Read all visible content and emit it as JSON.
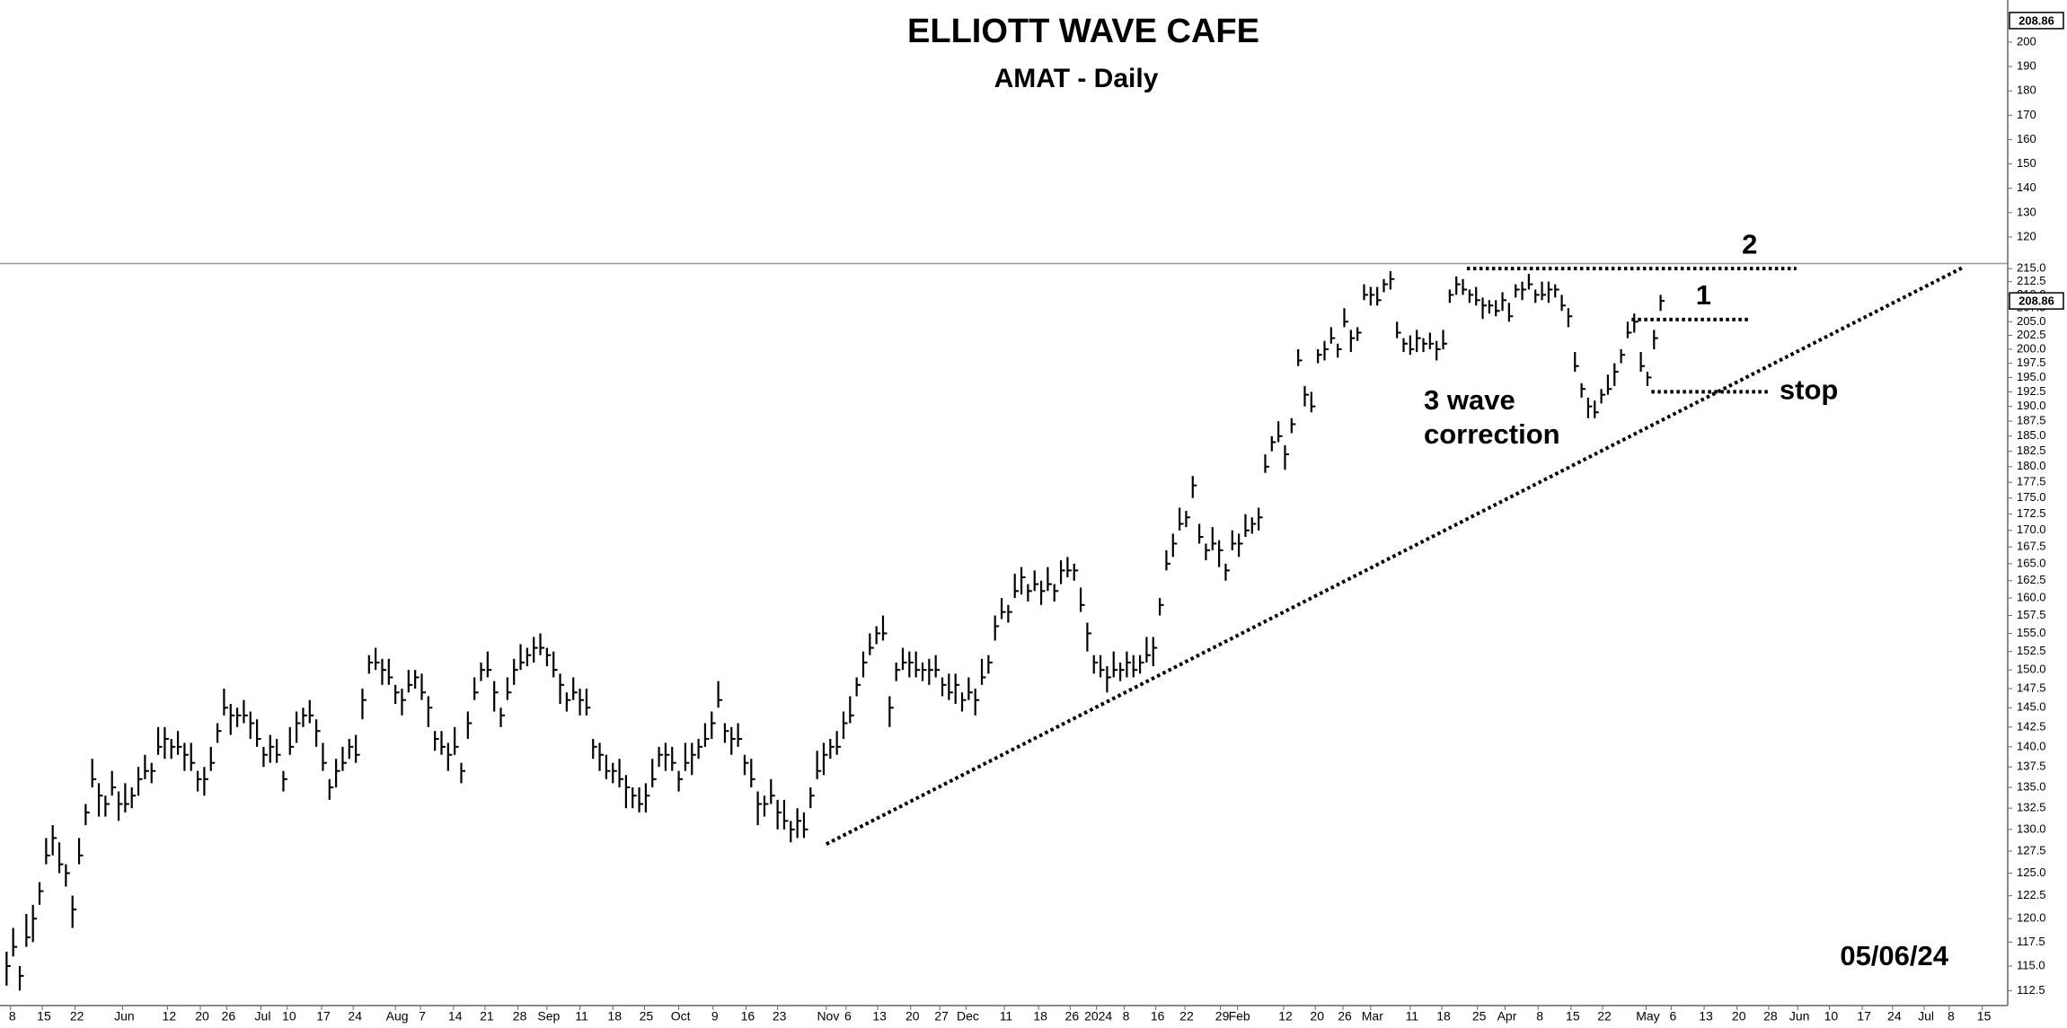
{
  "chart_data": [
    {
      "type": "pane",
      "title": "ELLIOTT WAVE CAFE",
      "subtitle": "AMAT - Daily",
      "ylim": [
        109.3,
        217.3
      ],
      "yticks": [
        120,
        130,
        140,
        150,
        160,
        170,
        180,
        190,
        200
      ],
      "last_price": 208.86
    },
    {
      "type": "ohlc",
      "log_scale": true,
      "color": "#000000",
      "line_color": "#000000",
      "xlim": [
        -1,
        303.4
      ],
      "ylim": [
        111,
        215.9
      ],
      "last_price": 208.86,
      "close": [
        115,
        117,
        114,
        118,
        120,
        123,
        127,
        129,
        126,
        125,
        121,
        127,
        132,
        136,
        134,
        133,
        135,
        133,
        133,
        134,
        136,
        137,
        137,
        140,
        141,
        140,
        140,
        139,
        138,
        136,
        136,
        138,
        142,
        145,
        144,
        144,
        144,
        143,
        141,
        139,
        140,
        139,
        136,
        140,
        143,
        144,
        144,
        142,
        138,
        135,
        137,
        138,
        140,
        139,
        146,
        151,
        151,
        150,
        149,
        147,
        146,
        148,
        149,
        147,
        145,
        141,
        140,
        139,
        140,
        137,
        143,
        147,
        150,
        150,
        147,
        144,
        147,
        150,
        151,
        152,
        153,
        153,
        152,
        150,
        148,
        146,
        147,
        146,
        145,
        140,
        139,
        137,
        137,
        136,
        135,
        134,
        133,
        134,
        136,
        139,
        139,
        138,
        136,
        138,
        139,
        140,
        141,
        143,
        146,
        142,
        141,
        141,
        138,
        136,
        133,
        133,
        134,
        132,
        131,
        130,
        131,
        130,
        134,
        137,
        139,
        140,
        140,
        143,
        144,
        148,
        151,
        153,
        155,
        155,
        145,
        150,
        151,
        151,
        150,
        150,
        150,
        150,
        148,
        147,
        148,
        146,
        147,
        146,
        149,
        151,
        156,
        158,
        158,
        161,
        163,
        161,
        162,
        161,
        162,
        161,
        164,
        164,
        164,
        159,
        155,
        151,
        150,
        149,
        150,
        150,
        151,
        150,
        151,
        152,
        153,
        159,
        165,
        168,
        171,
        172,
        177,
        169,
        167,
        168,
        167,
        164,
        168,
        168,
        170,
        171,
        172,
        180,
        184,
        185,
        182,
        187,
        198,
        192,
        190,
        199,
        200,
        202,
        200,
        205,
        202,
        203,
        210,
        210,
        209,
        212,
        213,
        203,
        201,
        200,
        202,
        201,
        201,
        200,
        201,
        210,
        212,
        211,
        210,
        209,
        208,
        208,
        207,
        209,
        206,
        211,
        211,
        212,
        210,
        210,
        211,
        211,
        208,
        206,
        197,
        193,
        190,
        189,
        192,
        193,
        196,
        199,
        203,
        205,
        197,
        195,
        202,
        208.86
      ],
      "high": [
        116.5,
        119,
        115,
        120.5,
        121.5,
        124,
        129,
        130.5,
        128.5,
        126,
        122.5,
        129,
        133,
        138.5,
        135.5,
        134,
        137,
        134.5,
        135.5,
        135,
        137.5,
        139,
        138,
        142.5,
        142.5,
        141,
        142,
        140.5,
        140.5,
        137,
        137.5,
        140,
        143,
        147.5,
        145.5,
        145,
        146,
        144.5,
        143.5,
        140,
        141.5,
        141,
        137,
        142.5,
        144.5,
        145,
        146,
        143.5,
        140.5,
        136,
        138.5,
        140,
        141,
        141.5,
        147.5,
        152,
        153,
        151.5,
        151.5,
        148,
        147.5,
        150,
        150,
        149.5,
        146.5,
        142,
        142,
        140.5,
        142.5,
        138,
        144.5,
        149,
        151,
        152.5,
        148.5,
        145,
        149,
        151.5,
        153.5,
        153,
        154.5,
        155,
        153,
        152.5,
        149.5,
        147,
        149,
        147.5,
        147.5,
        141,
        140.5,
        139,
        138,
        138.5,
        136.5,
        135,
        135,
        135.5,
        138.5,
        140,
        140.5,
        140,
        137,
        140.5,
        140.5,
        141,
        143,
        144.5,
        148.5,
        143,
        142.5,
        143,
        139,
        138.5,
        134.5,
        134,
        136,
        133.5,
        133.5,
        131,
        132.5,
        132,
        135,
        139.5,
        140.5,
        141,
        142,
        144.5,
        146.5,
        149,
        152.5,
        155,
        156,
        157.5,
        146.5,
        151,
        153,
        152.5,
        152.5,
        151,
        151.5,
        152,
        149,
        149.5,
        149.5,
        147,
        149,
        147.5,
        151.5,
        152,
        157.5,
        160,
        159,
        163.5,
        164.5,
        162,
        164,
        162.5,
        164.5,
        162,
        165.5,
        166,
        165,
        161.5,
        156.5,
        152,
        152,
        150.5,
        152.5,
        151,
        152.5,
        152,
        152,
        154.5,
        154.5,
        160,
        167,
        169.5,
        173.5,
        173,
        178.5,
        171,
        168,
        170.5,
        168.5,
        165,
        170,
        169.5,
        172.5,
        172,
        173.5,
        182,
        185,
        187.5,
        183.5,
        188,
        200,
        193.5,
        192.5,
        200,
        201.5,
        204,
        201,
        207.5,
        203.5,
        204,
        212,
        211.5,
        211.5,
        213,
        214.5,
        205,
        202,
        202.5,
        203.5,
        202,
        203,
        201.5,
        203.5,
        211,
        213.5,
        213,
        211,
        211.5,
        209.5,
        209,
        209,
        210.5,
        208.5,
        212,
        212.5,
        214,
        211,
        212.5,
        212.5,
        212,
        210,
        207.5,
        199.5,
        194,
        191.5,
        191,
        193,
        195.5,
        197.5,
        200,
        205,
        206.5,
        199.5,
        196,
        203.5,
        210
      ],
      "low": [
        113,
        116,
        112.5,
        117,
        117.5,
        121.5,
        126,
        127,
        125,
        123.5,
        119,
        126,
        130.5,
        135,
        131.5,
        131.5,
        134,
        131,
        132,
        132.5,
        134,
        136,
        135.5,
        139,
        138.5,
        138.5,
        139,
        137,
        137,
        134.5,
        134,
        137,
        140.5,
        144,
        141.5,
        142.5,
        143,
        141,
        140,
        137.5,
        138,
        138,
        134.5,
        139,
        140.5,
        142.5,
        143,
        140,
        137,
        133.5,
        135,
        137,
        138.5,
        138,
        143.5,
        149.5,
        150,
        148,
        148,
        145.5,
        144,
        147,
        147.5,
        146,
        142.5,
        139.5,
        139,
        137,
        139,
        135.5,
        141,
        146,
        148.5,
        149,
        144.5,
        142.5,
        146,
        148,
        150,
        150.5,
        151,
        152,
        150.5,
        149,
        145.5,
        144.5,
        146,
        144,
        144,
        138.5,
        137,
        136,
        135.5,
        135,
        132.5,
        132.5,
        132,
        132,
        135,
        137.5,
        137,
        137,
        134.5,
        137,
        136.5,
        138.5,
        140,
        141,
        145,
        140.5,
        139,
        140,
        136.5,
        135,
        130.5,
        131.5,
        133,
        130,
        130,
        128.5,
        129,
        129,
        132.5,
        136,
        136.5,
        138.5,
        139,
        141,
        143,
        146.5,
        149,
        152,
        153.5,
        154,
        142.5,
        148.5,
        150,
        149,
        149,
        148.5,
        148,
        149,
        146.5,
        146,
        145.5,
        144.5,
        146,
        144,
        148,
        149.5,
        154,
        157,
        156.5,
        160,
        160.5,
        159.5,
        161,
        159,
        161,
        159.5,
        162,
        163,
        162.5,
        158,
        152.5,
        149.5,
        149,
        147,
        149,
        148.5,
        149,
        149,
        149.5,
        151,
        150.5,
        157.5,
        164,
        166,
        170,
        170.5,
        175,
        168,
        165.5,
        167,
        164.5,
        162.5,
        167,
        166,
        169,
        169.5,
        170,
        179,
        182.5,
        184,
        179.5,
        185.5,
        197,
        190,
        189,
        197.5,
        198,
        201,
        198.5,
        204,
        199.5,
        201.5,
        209,
        208,
        208,
        210.5,
        211,
        202,
        199.5,
        199,
        199.5,
        199.5,
        200,
        198,
        200,
        208.5,
        210,
        210,
        208.5,
        208,
        205.5,
        206.5,
        206,
        207,
        205,
        209.5,
        209,
        211,
        208.5,
        209,
        208.5,
        209.5,
        207,
        204,
        196,
        191.5,
        188,
        188,
        190.5,
        192,
        193.5,
        197.5,
        202,
        203,
        196,
        193.5,
        200,
        207
      ],
      "yticks": [
        {
          "value": 112.5,
          "label": "112.5"
        },
        {
          "value": 115,
          "label": "115.0"
        },
        {
          "value": 117.5,
          "label": "117.5"
        },
        {
          "value": 120,
          "label": "120.0"
        },
        {
          "value": 122.5,
          "label": "122.5"
        },
        {
          "value": 125,
          "label": "125.0"
        },
        {
          "value": 127.5,
          "label": "127.5"
        },
        {
          "value": 130,
          "label": "130.0"
        },
        {
          "value": 132.5,
          "label": "132.5"
        },
        {
          "value": 135,
          "label": "135.0"
        },
        {
          "value": 137.5,
          "label": "137.5"
        },
        {
          "value": 140,
          "label": "140.0"
        },
        {
          "value": 142.5,
          "label": "142.5"
        },
        {
          "value": 145,
          "label": "145.0"
        },
        {
          "value": 147.5,
          "label": "147.5"
        },
        {
          "value": 150,
          "label": "150.0"
        },
        {
          "value": 152.5,
          "label": "152.5"
        },
        {
          "value": 155,
          "label": "155.0"
        },
        {
          "value": 157.5,
          "label": "157.5"
        },
        {
          "value": 160,
          "label": "160.0"
        },
        {
          "value": 162.5,
          "label": "162.5"
        },
        {
          "value": 165,
          "label": "165.0"
        },
        {
          "value": 167.5,
          "label": "167.5"
        },
        {
          "value": 170,
          "label": "170.0"
        },
        {
          "value": 172.5,
          "label": "172.5"
        },
        {
          "value": 175,
          "label": "175.0"
        },
        {
          "value": 177.5,
          "label": "177.5"
        },
        {
          "value": 180,
          "label": "180.0"
        },
        {
          "value": 182.5,
          "label": "182.5"
        },
        {
          "value": 185,
          "label": "185.0"
        },
        {
          "value": 187.5,
          "label": "187.5"
        },
        {
          "value": 190,
          "label": "190.0"
        },
        {
          "value": 192.5,
          "label": "192.5"
        },
        {
          "value": 195,
          "label": "195.0"
        },
        {
          "value": 197.5,
          "label": "197.5"
        },
        {
          "value": 200,
          "label": "200.0"
        },
        {
          "value": 202.5,
          "label": "202.5"
        },
        {
          "value": 205,
          "label": "205.0"
        },
        {
          "value": 207.5,
          "label": "207.5"
        },
        {
          "value": 210,
          "label": "210.0"
        },
        {
          "value": 212.5,
          "label": "212.5"
        },
        {
          "value": 215,
          "label": "215.0"
        }
      ],
      "xticks": [
        {
          "value": 0.6,
          "label": "8"
        },
        {
          "value": 5.4,
          "label": "15"
        },
        {
          "value": 10.4,
          "label": "22"
        },
        {
          "value": 17.6,
          "label": "Jun"
        },
        {
          "value": 24.4,
          "label": "12"
        },
        {
          "value": 29.4,
          "label": "20"
        },
        {
          "value": 33.4,
          "label": "26"
        },
        {
          "value": 38.6,
          "label": "Jul"
        },
        {
          "value": 42.6,
          "label": "10"
        },
        {
          "value": 47.8,
          "label": "17"
        },
        {
          "value": 52.6,
          "label": "24"
        },
        {
          "value": 59,
          "label": "Aug"
        },
        {
          "value": 62.8,
          "label": "7"
        },
        {
          "value": 67.8,
          "label": "14"
        },
        {
          "value": 72.6,
          "label": "21"
        },
        {
          "value": 77.6,
          "label": "28"
        },
        {
          "value": 82,
          "label": "Sep"
        },
        {
          "value": 87,
          "label": "11"
        },
        {
          "value": 92,
          "label": "18"
        },
        {
          "value": 96.8,
          "label": "25"
        },
        {
          "value": 102,
          "label": "Oct"
        },
        {
          "value": 107.2,
          "label": "9"
        },
        {
          "value": 112.2,
          "label": "16"
        },
        {
          "value": 117,
          "label": "23"
        },
        {
          "value": 124.4,
          "label": "Nov"
        },
        {
          "value": 127.4,
          "label": "6"
        },
        {
          "value": 132.2,
          "label": "13"
        },
        {
          "value": 137.2,
          "label": "20"
        },
        {
          "value": 141.6,
          "label": "27"
        },
        {
          "value": 145.6,
          "label": "Dec"
        },
        {
          "value": 151.4,
          "label": "11"
        },
        {
          "value": 156.6,
          "label": "18"
        },
        {
          "value": 161.4,
          "label": "26"
        },
        {
          "value": 165.4,
          "label": "2024"
        },
        {
          "value": 169.6,
          "label": "8"
        },
        {
          "value": 174.4,
          "label": "16"
        },
        {
          "value": 178.8,
          "label": "22"
        },
        {
          "value": 184.2,
          "label": "29"
        },
        {
          "value": 186.8,
          "label": "Feb"
        },
        {
          "value": 193.8,
          "label": "12"
        },
        {
          "value": 198.6,
          "label": "20"
        },
        {
          "value": 202.8,
          "label": "26"
        },
        {
          "value": 207,
          "label": "Mar"
        },
        {
          "value": 213,
          "label": "11"
        },
        {
          "value": 217.8,
          "label": "18"
        },
        {
          "value": 223.2,
          "label": "25"
        },
        {
          "value": 227.4,
          "label": "Apr"
        },
        {
          "value": 232.4,
          "label": "8"
        },
        {
          "value": 237.4,
          "label": "15"
        },
        {
          "value": 242.2,
          "label": "22"
        },
        {
          "value": 248.8,
          "label": "May"
        },
        {
          "value": 252.6,
          "label": "6"
        },
        {
          "value": 257.6,
          "label": "13"
        },
        {
          "value": 262.6,
          "label": "20"
        },
        {
          "value": 267.4,
          "label": "28"
        },
        {
          "value": 271.8,
          "label": "Jun"
        },
        {
          "value": 276.6,
          "label": "10"
        },
        {
          "value": 281.6,
          "label": "17"
        },
        {
          "value": 286.2,
          "label": "24"
        },
        {
          "value": 291,
          "label": "Jul"
        },
        {
          "value": 294.8,
          "label": "8"
        },
        {
          "value": 299.8,
          "label": "15"
        }
      ],
      "lines": [
        {
          "x": [
            124.4,
            297
          ],
          "y": [
            128.3,
            215.3
          ]
        },
        {
          "x": [
            221.6,
            271.6
          ],
          "y": [
            215,
            215
          ],
          "label": "2"
        },
        {
          "x": [
            246.6,
            264.6
          ],
          "y": [
            205.4,
            205.4
          ],
          "label": "1"
        },
        {
          "x": [
            249.6,
            267.4
          ],
          "y": [
            192.5,
            192.5
          ],
          "label": "stop"
        }
      ],
      "annotations": [
        "3 wave",
        "correction",
        "05/06/24"
      ]
    }
  ]
}
